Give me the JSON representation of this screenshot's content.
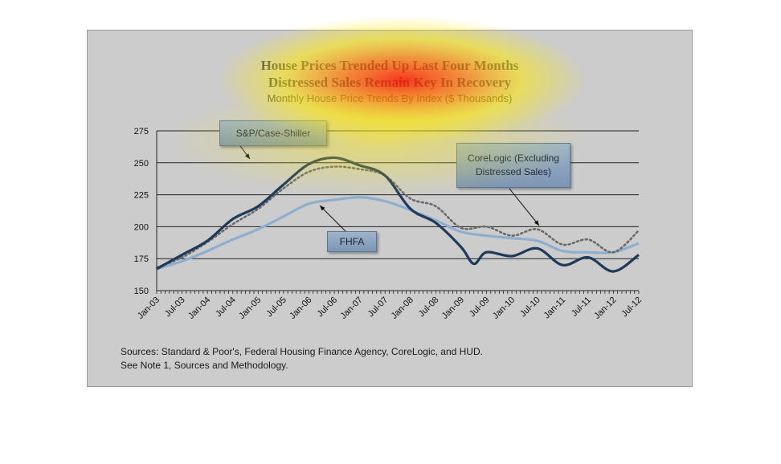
{
  "title_line1": "House Prices Trended Up Last Four Months",
  "title_line2": "Distressed Sales Remain Key In Recovery",
  "subtitle": "Monthly House Price Trends By Index ($ Thousands)",
  "callouts": {
    "sp": "S&P/Case-Shiller",
    "core_line1": "CoreLogic (Excluding",
    "core_line2": "Distressed Sales)",
    "fhfa": "FHFA"
  },
  "sources_line1": "Sources:  Standard & Poor's, Federal Housing Finance Agency, CoreLogic, and HUD.",
  "sources_line2": "See Note 1, Sources and Methodology.",
  "colors": {
    "sp": "#1f3a5a",
    "fhfa": "#8eaed0",
    "corelogic": "#6a6a6a",
    "heat_hot": "#ff2a00",
    "heat_warm": "#ffe400"
  },
  "chart_data": {
    "type": "line",
    "title": "House Prices Trended Up Last Four Months Distressed Sales Remain Key In Recovery",
    "subtitle": "Monthly House Price Trends By Index ($ Thousands)",
    "xlabel": "",
    "ylabel": "",
    "ylim": [
      150,
      275
    ],
    "yticks": [
      150,
      175,
      200,
      225,
      250,
      275
    ],
    "grid": true,
    "x_tick_labels": [
      "Jan-03",
      "Jul-03",
      "Jan-04",
      "Jul-04",
      "Jan-05",
      "Jul-05",
      "Jan-06",
      "Jul-06",
      "Jan-07",
      "Jul-07",
      "Jan-08",
      "Jul-08",
      "Jan-09",
      "Jul-09",
      "Jan-10",
      "Jul-10",
      "Jan-11",
      "Jul-11",
      "Jan-12",
      "Jul-12"
    ],
    "x_start": "Jan-03",
    "x_end": "Jul-12",
    "series": [
      {
        "name": "S&P/Case-Shiller",
        "style": "solid-dark",
        "x": [
          "Jan-03",
          "Jul-03",
          "Jan-04",
          "Jul-04",
          "Jan-05",
          "Jul-05",
          "Jan-06",
          "Jul-06",
          "Jan-07",
          "Jul-07",
          "Jan-08",
          "Jul-08",
          "Jan-09",
          "Apr-09",
          "Jul-09",
          "Jan-10",
          "Jul-10",
          "Jan-11",
          "Jul-11",
          "Jan-12",
          "Jul-12"
        ],
        "values": [
          167,
          178,
          189,
          206,
          216,
          233,
          249,
          254,
          248,
          240,
          214,
          203,
          184,
          171,
          180,
          177,
          183,
          170,
          176,
          165,
          178
        ]
      },
      {
        "name": "FHFA",
        "style": "solid-light",
        "x": [
          "Jan-03",
          "Jul-03",
          "Jan-04",
          "Jul-04",
          "Jan-05",
          "Jul-05",
          "Jan-06",
          "Jul-06",
          "Jan-07",
          "Jul-07",
          "Jan-08",
          "Jul-08",
          "Jan-09",
          "Jul-09",
          "Jan-10",
          "Jul-10",
          "Jan-11",
          "Jul-11",
          "Jan-12",
          "Jul-12"
        ],
        "values": [
          167,
          173,
          181,
          190,
          198,
          208,
          218,
          221,
          223,
          220,
          213,
          205,
          196,
          193,
          191,
          189,
          181,
          180,
          180,
          187
        ]
      },
      {
        "name": "CoreLogic (Excluding Distressed Sales)",
        "style": "dotted",
        "x": [
          "Jan-03",
          "Jul-03",
          "Jan-04",
          "Jul-04",
          "Jan-05",
          "Jul-05",
          "Jan-06",
          "Jul-06",
          "Jan-07",
          "Jul-07",
          "Jan-08",
          "Jul-08",
          "Jan-09",
          "Jul-09",
          "Jan-10",
          "Jul-10",
          "Jan-11",
          "Jul-11",
          "Jan-12",
          "Jul-12"
        ],
        "values": [
          168,
          176,
          188,
          202,
          214,
          230,
          243,
          247,
          245,
          240,
          222,
          216,
          199,
          200,
          193,
          198,
          186,
          190,
          180,
          197
        ]
      }
    ]
  }
}
